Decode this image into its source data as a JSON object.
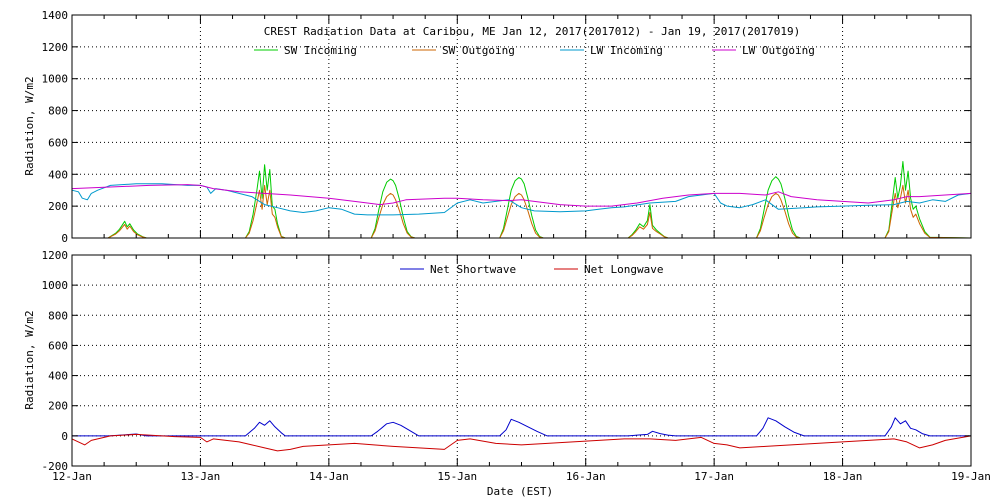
{
  "chart_data": [
    {
      "type": "line",
      "title": "CREST Radiation Data at Caribou, ME   Jan 12, 2017(2017012) - Jan 19, 2017(2017019)",
      "xlabel": "",
      "ylabel": "Radiation, W/m2",
      "xlim": [
        0,
        7
      ],
      "ylim": [
        0,
        1400
      ],
      "yticks": [
        0,
        200,
        400,
        600,
        800,
        1000,
        1200,
        1400
      ],
      "grid": true,
      "legend": "top",
      "series": [
        {
          "name": "SW Incoming",
          "color": "#00cc00",
          "x": [
            0,
            0.28,
            0.3,
            0.34,
            0.37,
            0.39,
            0.41,
            0.43,
            0.45,
            0.48,
            0.51,
            0.55,
            0.58,
            1.35,
            1.38,
            1.41,
            1.44,
            1.46,
            1.48,
            1.5,
            1.52,
            1.54,
            1.56,
            1.58,
            1.6,
            1.63,
            1.66,
            2.33,
            2.36,
            2.39,
            2.42,
            2.45,
            2.48,
            2.5,
            2.52,
            2.55,
            2.58,
            2.61,
            2.64,
            2.67,
            2.7,
            3.33,
            3.36,
            3.39,
            3.42,
            3.45,
            3.48,
            3.5,
            3.52,
            3.55,
            3.58,
            3.61,
            3.64,
            3.67,
            3.7,
            4.33,
            4.36,
            4.39,
            4.42,
            4.45,
            4.48,
            4.5,
            4.52,
            4.55,
            4.58,
            4.61,
            4.64,
            4.67,
            4.7,
            5.33,
            5.36,
            5.39,
            5.42,
            5.45,
            5.48,
            5.5,
            5.52,
            5.55,
            5.58,
            5.61,
            5.64,
            5.67,
            5.7,
            6.33,
            6.36,
            6.39,
            6.41,
            6.43,
            6.45,
            6.47,
            6.49,
            6.51,
            6.53,
            6.55,
            6.57,
            6.6,
            6.64,
            6.68,
            7
          ],
          "y": [
            0,
            0,
            10,
            30,
            55,
            80,
            105,
            70,
            90,
            50,
            25,
            8,
            0,
            0,
            40,
            150,
            300,
            420,
            250,
            460,
            300,
            430,
            200,
            180,
            90,
            10,
            0,
            0,
            60,
            180,
            290,
            350,
            370,
            360,
            330,
            240,
            130,
            40,
            8,
            0,
            0,
            0,
            60,
            180,
            300,
            360,
            380,
            370,
            340,
            250,
            140,
            50,
            10,
            0,
            0,
            0,
            20,
            50,
            90,
            70,
            110,
            210,
            80,
            50,
            30,
            10,
            0,
            0,
            0,
            0,
            60,
            180,
            300,
            360,
            385,
            370,
            340,
            250,
            140,
            50,
            10,
            0,
            0,
            0,
            50,
            250,
            380,
            250,
            330,
            480,
            300,
            420,
            250,
            180,
            200,
            120,
            40,
            5,
            0
          ]
        },
        {
          "name": "SW Outgoing",
          "color": "#cc6600",
          "x": [
            0,
            0.28,
            0.3,
            0.34,
            0.37,
            0.39,
            0.41,
            0.43,
            0.45,
            0.48,
            0.51,
            0.55,
            0.58,
            1.35,
            1.38,
            1.41,
            1.44,
            1.46,
            1.48,
            1.5,
            1.52,
            1.54,
            1.56,
            1.58,
            1.6,
            1.63,
            1.66,
            2.33,
            2.36,
            2.39,
            2.42,
            2.45,
            2.48,
            2.5,
            2.52,
            2.55,
            2.58,
            2.61,
            2.64,
            2.67,
            2.7,
            3.33,
            3.36,
            3.39,
            3.42,
            3.45,
            3.48,
            3.5,
            3.52,
            3.55,
            3.58,
            3.61,
            3.64,
            3.67,
            3.7,
            4.33,
            4.36,
            4.39,
            4.42,
            4.45,
            4.48,
            4.5,
            4.52,
            4.55,
            4.58,
            4.61,
            4.64,
            4.67,
            4.7,
            5.33,
            5.36,
            5.39,
            5.42,
            5.45,
            5.48,
            5.5,
            5.52,
            5.55,
            5.58,
            5.61,
            5.64,
            5.67,
            5.7,
            6.33,
            6.36,
            6.39,
            6.41,
            6.43,
            6.45,
            6.47,
            6.49,
            6.51,
            6.53,
            6.55,
            6.57,
            6.6,
            6.64,
            6.68,
            7
          ],
          "y": [
            0,
            0,
            8,
            25,
            45,
            65,
            85,
            55,
            75,
            40,
            20,
            6,
            0,
            0,
            30,
            110,
            220,
            300,
            180,
            330,
            210,
            300,
            150,
            130,
            70,
            8,
            0,
            0,
            45,
            130,
            210,
            260,
            280,
            270,
            240,
            170,
            90,
            30,
            6,
            0,
            0,
            0,
            45,
            130,
            210,
            260,
            280,
            270,
            240,
            170,
            90,
            30,
            6,
            0,
            0,
            0,
            15,
            40,
            70,
            55,
            85,
            160,
            60,
            40,
            25,
            8,
            0,
            0,
            0,
            0,
            45,
            130,
            210,
            260,
            280,
            270,
            240,
            170,
            90,
            30,
            6,
            0,
            0,
            0,
            40,
            190,
            280,
            190,
            250,
            330,
            220,
            300,
            180,
            130,
            150,
            90,
            30,
            4,
            0
          ]
        },
        {
          "name": "LW Incoming",
          "color": "#0099cc",
          "x": [
            0,
            0.05,
            0.08,
            0.12,
            0.15,
            0.2,
            0.3,
            0.5,
            0.7,
            0.9,
            1.0,
            1.05,
            1.08,
            1.12,
            1.2,
            1.3,
            1.4,
            1.5,
            1.6,
            1.7,
            1.8,
            1.9,
            2.0,
            2.1,
            2.2,
            2.3,
            2.5,
            2.7,
            2.9,
            3.0,
            3.1,
            3.2,
            3.3,
            3.4,
            3.5,
            3.6,
            3.8,
            4.0,
            4.1,
            4.2,
            4.3,
            4.5,
            4.7,
            4.8,
            4.9,
            5.0,
            5.05,
            5.1,
            5.2,
            5.3,
            5.4,
            5.5,
            5.6,
            5.7,
            5.8,
            6.0,
            6.2,
            6.4,
            6.5,
            6.6,
            6.7,
            6.8,
            6.9,
            7
          ],
          "y": [
            300,
            290,
            250,
            240,
            280,
            300,
            330,
            340,
            340,
            330,
            330,
            320,
            280,
            310,
            300,
            280,
            260,
            210,
            190,
            170,
            160,
            170,
            190,
            180,
            150,
            145,
            145,
            150,
            160,
            220,
            240,
            220,
            230,
            240,
            190,
            170,
            165,
            170,
            180,
            190,
            195,
            220,
            230,
            260,
            270,
            280,
            220,
            200,
            190,
            210,
            240,
            180,
            185,
            190,
            195,
            200,
            205,
            210,
            230,
            220,
            240,
            230,
            270,
            280
          ]
        },
        {
          "name": "LW Outgoing",
          "color": "#cc00cc",
          "x": [
            0,
            0.3,
            0.6,
            0.9,
            1.0,
            1.05,
            1.1,
            1.3,
            1.5,
            1.7,
            2.0,
            2.2,
            2.4,
            2.5,
            2.6,
            2.9,
            3.0,
            3.2,
            3.4,
            3.5,
            3.6,
            3.8,
            4.0,
            4.2,
            4.4,
            4.6,
            4.8,
            5.0,
            5.2,
            5.4,
            5.5,
            5.6,
            5.8,
            6.0,
            6.2,
            6.4,
            6.5,
            6.6,
            6.8,
            7
          ],
          "y": [
            310,
            320,
            330,
            335,
            330,
            320,
            310,
            290,
            280,
            270,
            250,
            230,
            210,
            220,
            240,
            250,
            250,
            240,
            235,
            240,
            230,
            210,
            200,
            200,
            220,
            250,
            270,
            280,
            280,
            270,
            290,
            260,
            240,
            230,
            220,
            240,
            260,
            260,
            270,
            280
          ]
        }
      ]
    },
    {
      "type": "line",
      "title": "",
      "xlabel": "Date (EST)",
      "ylabel": "Radiation, W/m2",
      "xlim": [
        0,
        7
      ],
      "ylim": [
        -200,
        1200
      ],
      "yticks": [
        -200,
        0,
        200,
        400,
        600,
        800,
        1000,
        1200
      ],
      "categories": [
        "12-Jan",
        "13-Jan",
        "14-Jan",
        "15-Jan",
        "16-Jan",
        "17-Jan",
        "18-Jan",
        "19-Jan"
      ],
      "grid": true,
      "legend": "top",
      "series": [
        {
          "name": "Net Shortwave",
          "color": "#0000cc",
          "x": [
            0,
            0.28,
            0.35,
            0.42,
            0.5,
            0.58,
            1.35,
            1.42,
            1.46,
            1.5,
            1.54,
            1.58,
            1.63,
            1.66,
            2.33,
            2.38,
            2.45,
            2.5,
            2.56,
            2.62,
            2.7,
            3.33,
            3.38,
            3.42,
            3.48,
            3.55,
            3.62,
            3.7,
            4.33,
            4.4,
            4.48,
            4.52,
            4.58,
            4.64,
            4.7,
            5.33,
            5.38,
            5.42,
            5.48,
            5.55,
            5.62,
            5.7,
            6.33,
            6.38,
            6.41,
            6.45,
            6.49,
            6.53,
            6.57,
            6.62,
            6.68,
            7
          ],
          "y": [
            0,
            0,
            3,
            8,
            12,
            0,
            0,
            50,
            90,
            70,
            100,
            60,
            20,
            0,
            0,
            30,
            80,
            90,
            70,
            40,
            0,
            0,
            40,
            110,
            90,
            60,
            30,
            0,
            0,
            5,
            10,
            30,
            15,
            5,
            0,
            0,
            50,
            120,
            100,
            60,
            25,
            0,
            0,
            60,
            120,
            80,
            100,
            50,
            40,
            15,
            0,
            0
          ]
        },
        {
          "name": "Net Longwave",
          "color": "#cc0000",
          "x": [
            0,
            0.05,
            0.1,
            0.15,
            0.3,
            0.5,
            0.8,
            1.0,
            1.05,
            1.1,
            1.2,
            1.3,
            1.4,
            1.5,
            1.6,
            1.7,
            1.8,
            2.0,
            2.2,
            2.35,
            2.5,
            2.7,
            2.9,
            3.0,
            3.1,
            3.3,
            3.5,
            3.7,
            3.9,
            4.1,
            4.3,
            4.5,
            4.7,
            4.9,
            5.0,
            5.1,
            5.2,
            5.4,
            5.6,
            5.8,
            6.0,
            6.2,
            6.4,
            6.5,
            6.6,
            6.7,
            6.8,
            7
          ],
          "y": [
            -20,
            -40,
            -60,
            -30,
            0,
            10,
            -5,
            -10,
            -40,
            -20,
            -30,
            -40,
            -60,
            -80,
            -100,
            -90,
            -70,
            -60,
            -50,
            -60,
            -70,
            -80,
            -90,
            -30,
            -20,
            -50,
            -60,
            -50,
            -40,
            -30,
            -20,
            -20,
            -30,
            -10,
            -50,
            -60,
            -80,
            -70,
            -60,
            -50,
            -40,
            -30,
            -20,
            -40,
            -80,
            -60,
            -30,
            0
          ]
        }
      ]
    }
  ]
}
